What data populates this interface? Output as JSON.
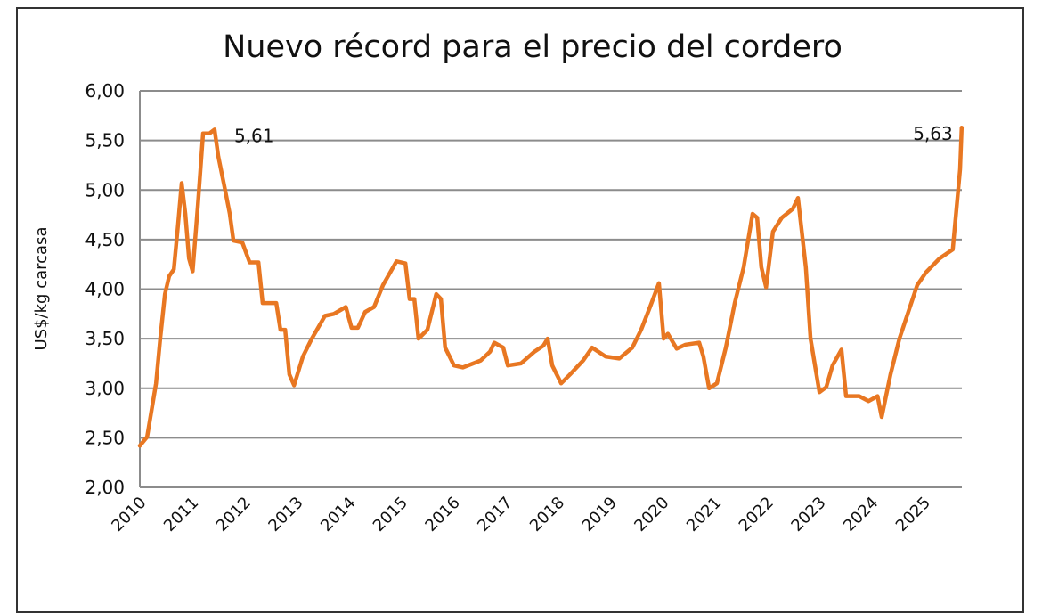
{
  "chart_data": {
    "type": "line",
    "title": "Nuevo récord para el precio del cordero",
    "xlabel": "",
    "ylabel": "US$/kg carcasa",
    "xlim": [
      2010,
      2025.75
    ],
    "ylim": [
      2.0,
      6.0
    ],
    "grid": true,
    "line_color": "#E87722",
    "y_ticks": [
      "2,00",
      "2,50",
      "3,00",
      "3,50",
      "4,00",
      "4,50",
      "5,00",
      "5,50",
      "6,00"
    ],
    "y_tick_values": [
      2.0,
      2.5,
      3.0,
      3.5,
      4.0,
      4.5,
      5.0,
      5.5,
      6.0
    ],
    "x_ticks": [
      "2010",
      "2011",
      "2012",
      "2013",
      "2014",
      "2015",
      "2016",
      "2017",
      "2018",
      "2019",
      "2020",
      "2021",
      "2022",
      "2023",
      "2024",
      "2025"
    ],
    "annotations": [
      {
        "text": "5,61",
        "x": 2011.43,
        "y": 5.61
      },
      {
        "text": "5,63",
        "x": 2025.72,
        "y": 5.63
      }
    ],
    "series": [
      {
        "x": [
          2010.0,
          2010.14,
          2010.31,
          2010.39,
          2010.48,
          2010.56,
          2010.65,
          2010.73,
          2010.8,
          2010.87,
          2010.94,
          2011.01,
          2011.11,
          2011.21,
          2011.33,
          2011.43,
          2011.5,
          2011.62,
          2011.72,
          2011.79,
          2011.96,
          2012.1,
          2012.27,
          2012.35,
          2012.61,
          2012.69,
          2012.78,
          2012.86,
          2012.95,
          2013.12,
          2013.29,
          2013.54,
          2013.71,
          2013.94,
          2014.05,
          2014.17,
          2014.31,
          2014.48,
          2014.65,
          2014.91,
          2015.08,
          2015.16,
          2015.25,
          2015.33,
          2015.5,
          2015.67,
          2015.76,
          2015.84,
          2016.01,
          2016.18,
          2016.52,
          2016.7,
          2016.78,
          2016.95,
          2017.04,
          2017.29,
          2017.55,
          2017.72,
          2017.8,
          2017.89,
          2018.06,
          2018.23,
          2018.48,
          2018.65,
          2018.91,
          2019.17,
          2019.42,
          2019.59,
          2019.76,
          2019.93,
          2020.02,
          2020.1,
          2020.27,
          2020.44,
          2020.7,
          2020.78,
          2020.89,
          2021.04,
          2021.21,
          2021.38,
          2021.55,
          2021.72,
          2021.81,
          2021.89,
          2021.98,
          2022.11,
          2022.28,
          2022.49,
          2022.59,
          2022.74,
          2022.83,
          2023.0,
          2023.13,
          2023.25,
          2023.42,
          2023.51,
          2023.76,
          2023.94,
          2024.11,
          2024.19,
          2024.36,
          2024.53,
          2024.7,
          2024.87,
          2025.04,
          2025.3,
          2025.55,
          2025.69,
          2025.72
        ],
        "values": [
          2.42,
          2.51,
          3.05,
          3.5,
          3.95,
          4.13,
          4.2,
          4.65,
          5.07,
          4.76,
          4.31,
          4.18,
          4.85,
          5.57,
          5.57,
          5.61,
          5.34,
          5.03,
          4.76,
          4.49,
          4.47,
          4.27,
          4.27,
          3.86,
          3.86,
          3.59,
          3.59,
          3.14,
          3.03,
          3.32,
          3.5,
          3.73,
          3.75,
          3.82,
          3.61,
          3.61,
          3.77,
          3.82,
          4.04,
          4.28,
          4.26,
          3.9,
          3.9,
          3.5,
          3.59,
          3.95,
          3.9,
          3.41,
          3.23,
          3.21,
          3.28,
          3.37,
          3.46,
          3.41,
          3.23,
          3.25,
          3.37,
          3.43,
          3.5,
          3.23,
          3.05,
          3.14,
          3.28,
          3.41,
          3.32,
          3.3,
          3.41,
          3.59,
          3.82,
          4.06,
          3.5,
          3.55,
          3.4,
          3.44,
          3.46,
          3.32,
          3.0,
          3.05,
          3.41,
          3.86,
          4.22,
          4.76,
          4.72,
          4.22,
          4.02,
          4.58,
          4.72,
          4.81,
          4.92,
          4.22,
          3.5,
          2.96,
          3.01,
          3.23,
          3.39,
          2.92,
          2.92,
          2.87,
          2.92,
          2.71,
          3.14,
          3.5,
          3.77,
          4.04,
          4.17,
          4.31,
          4.4,
          5.21,
          5.63
        ]
      }
    ]
  }
}
